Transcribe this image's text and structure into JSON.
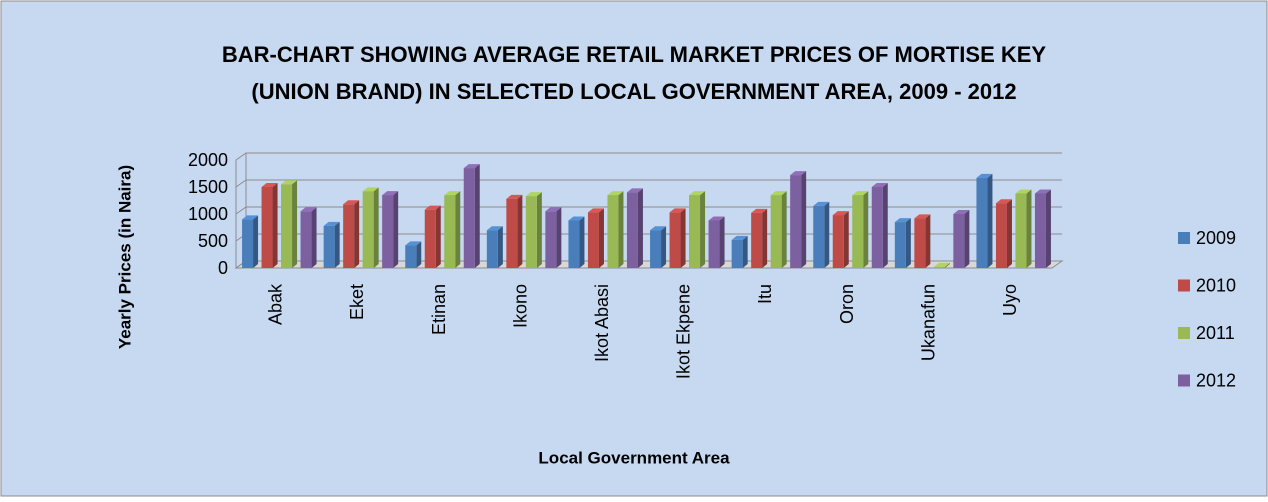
{
  "chart_data": {
    "type": "bar3d",
    "title": [
      "BAR-CHART SHOWING AVERAGE RETAIL MARKET PRICES OF MORTISE KEY",
      "(UNION BRAND) IN SELECTED LOCAL GOVERNMENT AREA, 2009 - 2012"
    ],
    "x_label": "Local Government Area",
    "y_label": "Yearly Prices (in Naira)",
    "categories": [
      "Abak",
      "Eket",
      "Etinan",
      "Ikono",
      "Ikot Abasi",
      "Ikot Ekpene",
      "Itu",
      "Oron",
      "Ukanafun",
      "Uyo"
    ],
    "series": [
      {
        "name": "2009",
        "color": "#4a7ebb",
        "values": [
          900,
          780,
          420,
          700,
          880,
          700,
          520,
          1150,
          850,
          1670
        ]
      },
      {
        "name": "2010",
        "color": "#be4b48",
        "values": [
          1500,
          1180,
          1080,
          1280,
          1030,
          1030,
          1020,
          980,
          920,
          1200
        ]
      },
      {
        "name": "2011",
        "color": "#98b954",
        "values": [
          1550,
          1420,
          1350,
          1330,
          1350,
          1350,
          1350,
          1350,
          20,
          1380
        ]
      },
      {
        "name": "2012",
        "color": "#7d60a0",
        "values": [
          1050,
          1350,
          1850,
          1050,
          1400,
          880,
          1720,
          1500,
          1000,
          1380
        ]
      }
    ],
    "ylim": [
      0,
      2000
    ],
    "yticks": [
      0,
      500,
      1000,
      1500,
      2000
    ],
    "grid": true,
    "legend": "right"
  }
}
